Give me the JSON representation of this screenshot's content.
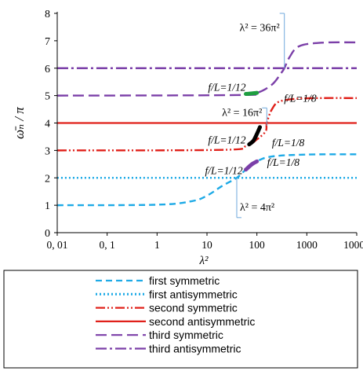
{
  "chart_data": {
    "type": "line",
    "xlabel": "λ²",
    "ylabel": "ω̄ₙ / π",
    "xscale": "log",
    "xlim": [
      0.01,
      10000
    ],
    "ylim": [
      0,
      8
    ],
    "x_ticks": [
      {
        "value": 0.01,
        "label": "0, 01"
      },
      {
        "value": 0.1,
        "label": "0, 1"
      },
      {
        "value": 1,
        "label": "1"
      },
      {
        "value": 10,
        "label": "10"
      },
      {
        "value": 100,
        "label": "100"
      },
      {
        "value": 1000,
        "label": "1000"
      },
      {
        "value": 10000,
        "label": "10000"
      }
    ],
    "y_ticks": [
      {
        "value": 0,
        "label": "0"
      },
      {
        "value": 1,
        "label": "1"
      },
      {
        "value": 2,
        "label": "2"
      },
      {
        "value": 3,
        "label": "3"
      },
      {
        "value": 4,
        "label": "4"
      },
      {
        "value": 5,
        "label": "5"
      },
      {
        "value": 6,
        "label": "6"
      },
      {
        "value": 7,
        "label": "7"
      },
      {
        "value": 8,
        "label": "8"
      }
    ],
    "grid": false,
    "legend_position": "bottom",
    "series": [
      {
        "name": "first symmetric",
        "color": "#1eaae6",
        "dash": "dashed",
        "points": [
          [
            0.01,
            1.0
          ],
          [
            1,
            1.02
          ],
          [
            5,
            1.15
          ],
          [
            10,
            1.35
          ],
          [
            20,
            1.7
          ],
          [
            39.5,
            2.0
          ],
          [
            60,
            2.3
          ],
          [
            100,
            2.6
          ],
          [
            200,
            2.78
          ],
          [
            1000,
            2.85
          ],
          [
            10000,
            2.86
          ]
        ]
      },
      {
        "name": "first antisymmetric",
        "color": "#1eaae6",
        "dash": "dotted",
        "points": [
          [
            0.01,
            2.0
          ],
          [
            10000,
            2.0
          ]
        ]
      },
      {
        "name": "second symmetric",
        "color": "#e0201a",
        "dash": "dashdotdot",
        "points": [
          [
            0.01,
            3.0
          ],
          [
            20,
            3.02
          ],
          [
            60,
            3.15
          ],
          [
            100,
            3.4
          ],
          [
            150,
            3.7
          ],
          [
            158,
            4.0
          ],
          [
            200,
            4.5
          ],
          [
            300,
            4.8
          ],
          [
            1000,
            4.9
          ],
          [
            10000,
            4.91
          ]
        ]
      },
      {
        "name": "second antisymmetric",
        "color": "#e0201a",
        "dash": "solid",
        "points": [
          [
            0.01,
            4.0
          ],
          [
            10000,
            4.0
          ]
        ]
      },
      {
        "name": "third symmetric",
        "color": "#7b3fa8",
        "dash": "longdash",
        "points": [
          [
            0.01,
            5.0
          ],
          [
            40,
            5.02
          ],
          [
            100,
            5.1
          ],
          [
            200,
            5.4
          ],
          [
            300,
            5.8
          ],
          [
            355,
            6.0
          ],
          [
            450,
            6.4
          ],
          [
            700,
            6.8
          ],
          [
            2000,
            6.93
          ],
          [
            10000,
            6.94
          ]
        ]
      },
      {
        "name": "third antisymmetric",
        "color": "#7b3fa8",
        "dash": "dashdot",
        "points": [
          [
            0.01,
            6.0
          ],
          [
            10000,
            6.0
          ]
        ]
      }
    ],
    "highlights": [
      {
        "color": "#1e9e40",
        "points": [
          [
            60,
            5.06
          ],
          [
            80,
            5.08
          ],
          [
            100,
            5.1
          ]
        ]
      },
      {
        "color": "#000000",
        "points": [
          [
            70,
            3.22
          ],
          [
            85,
            3.35
          ],
          [
            100,
            3.6
          ],
          [
            115,
            3.85
          ]
        ]
      },
      {
        "color": "#7b3fa8",
        "points": [
          [
            60,
            2.3
          ],
          [
            80,
            2.5
          ],
          [
            100,
            2.6
          ]
        ]
      }
    ],
    "annotations": [
      {
        "id": "lam36",
        "text": "λ² = 36π²",
        "x": 355,
        "y_top": 8.0,
        "y_bottom": 6.0,
        "label_y": 7.5,
        "align": "left-of-line"
      },
      {
        "id": "lam16",
        "text": "λ² = 16π²",
        "x": 158,
        "y_top": 4.55,
        "y_bottom": 3.9,
        "label_y": 4.4,
        "align": "left-of-line"
      },
      {
        "id": "lam4",
        "text": "λ² = 4π²",
        "x": 39.5,
        "y_top": 2.0,
        "y_bottom": 0.55,
        "label_y": 0.95,
        "align": "right-of-line"
      }
    ],
    "labels": [
      {
        "text": "f/L=1/12",
        "x": 60,
        "y": 5.32,
        "anchor": "end"
      },
      {
        "text": "f/L=1/8",
        "x": 350,
        "y": 4.92,
        "anchor": "start"
      },
      {
        "text": "f/L=1/12",
        "x": 60,
        "y": 3.4,
        "anchor": "end"
      },
      {
        "text": "f/L=1/8",
        "x": 200,
        "y": 3.3,
        "anchor": "start"
      },
      {
        "text": "f/L=1/12",
        "x": 52,
        "y": 2.28,
        "anchor": "end"
      },
      {
        "text": "f/L=1/8",
        "x": 160,
        "y": 2.58,
        "anchor": "start"
      }
    ]
  }
}
